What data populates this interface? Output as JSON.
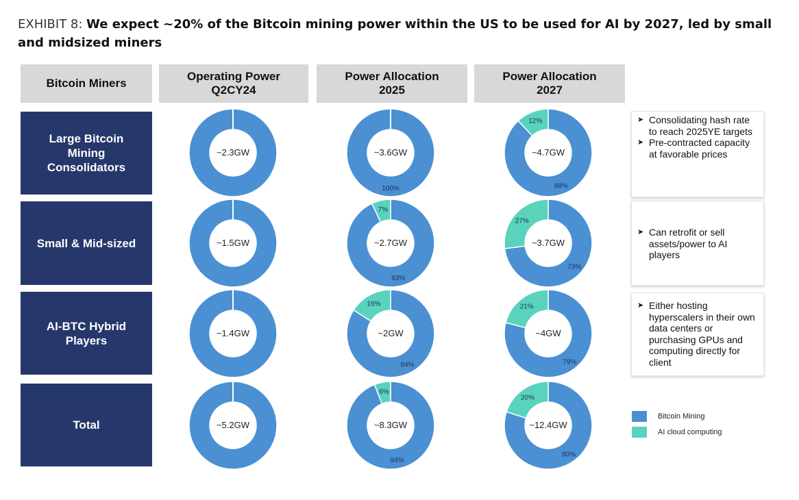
{
  "title": {
    "exhibit": "EXHIBIT 8:",
    "headline": "We expect ~20% of the Bitcoin mining power within the US to be used for AI by 2027, led by small and midsized miners"
  },
  "headers": {
    "miners": "Bitcoin Miners",
    "col1": "Operating Power\nQ2CY24",
    "col2": "Power Allocation\n2025",
    "col3": "Power Allocation\n2027"
  },
  "rows": [
    {
      "label": "Large Bitcoin\nMining\nConsolidators"
    },
    {
      "label": "Small & Mid-sized"
    },
    {
      "label": "AI-BTC Hybrid\nPlayers"
    },
    {
      "label": "Total"
    }
  ],
  "notes": [
    [
      "Consolidating hash rate to reach 2025YE targets",
      "Pre-contracted capacity at favorable prices"
    ],
    [
      "Can retrofit or sell assets/power to AI players"
    ],
    [
      "Either hosting hyperscalers in their own data centers or purchasing GPUs and computing directly for client"
    ]
  ],
  "legend": {
    "bitcoin": "Bitcoin Mining",
    "ai": "AI cloud computing"
  },
  "colors": {
    "bitcoin": "#4a90d3",
    "ai": "#59d3bc",
    "label_bg": "#26386b",
    "header_bg": "#d8d8d8"
  },
  "chart_data": {
    "type": "donut-grid",
    "series": [
      {
        "name": "Bitcoin Mining"
      },
      {
        "name": "AI cloud computing"
      }
    ],
    "columns": [
      "Operating Power Q2CY24",
      "Power Allocation 2025",
      "Power Allocation 2027"
    ],
    "rows": [
      "Large Bitcoin Mining Consolidators",
      "Small & Mid-sized",
      "AI-BTC Hybrid Players",
      "Total"
    ],
    "cells": [
      [
        {
          "center": "~2.3GW",
          "bitcoin": 100,
          "ai": 0,
          "bitcoin_label": "",
          "ai_label": ""
        },
        {
          "center": "~3.6GW",
          "bitcoin": 100,
          "ai": 0,
          "bitcoin_label": "100%",
          "ai_label": ""
        },
        {
          "center": "~4.7GW",
          "bitcoin": 88,
          "ai": 12,
          "bitcoin_label": "88%",
          "ai_label": "12%"
        }
      ],
      [
        {
          "center": "~1.5GW",
          "bitcoin": 100,
          "ai": 0,
          "bitcoin_label": "",
          "ai_label": ""
        },
        {
          "center": "~2.7GW",
          "bitcoin": 93,
          "ai": 7,
          "bitcoin_label": "93%",
          "ai_label": "7%"
        },
        {
          "center": "~3.7GW",
          "bitcoin": 73,
          "ai": 27,
          "bitcoin_label": "73%",
          "ai_label": "27%"
        }
      ],
      [
        {
          "center": "~1.4GW",
          "bitcoin": 100,
          "ai": 0,
          "bitcoin_label": "",
          "ai_label": ""
        },
        {
          "center": "~2GW",
          "bitcoin": 84,
          "ai": 16,
          "bitcoin_label": "84%",
          "ai_label": "16%"
        },
        {
          "center": "~4GW",
          "bitcoin": 79,
          "ai": 21,
          "bitcoin_label": "79%",
          "ai_label": "21%"
        }
      ],
      [
        {
          "center": "~5.2GW",
          "bitcoin": 100,
          "ai": 0,
          "bitcoin_label": "",
          "ai_label": ""
        },
        {
          "center": "~8.3GW",
          "bitcoin": 94,
          "ai": 6,
          "bitcoin_label": "94%",
          "ai_label": "6%"
        },
        {
          "center": "~12.4GW",
          "bitcoin": 80,
          "ai": 20,
          "bitcoin_label": "80%",
          "ai_label": "20%"
        }
      ]
    ]
  }
}
